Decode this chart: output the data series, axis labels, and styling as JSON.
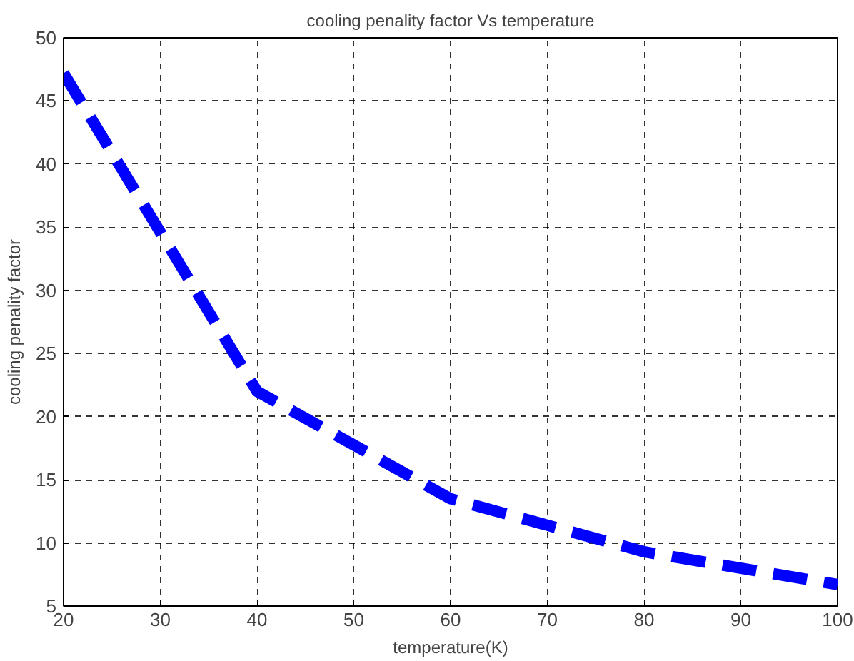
{
  "chart_data": {
    "type": "line",
    "title": "cooling penality factor Vs temperature",
    "xlabel": "temperature(K)",
    "ylabel": "cooling penality factor",
    "x": [
      20,
      40,
      60,
      80,
      100
    ],
    "series": [
      {
        "color": "#0000ff",
        "values": [
          47.2,
          22,
          13.5,
          9.3,
          6.7
        ]
      }
    ],
    "xlim": [
      20,
      100
    ],
    "xticks": [
      20,
      30,
      40,
      50,
      60,
      70,
      80,
      90,
      100
    ],
    "ylim": [
      5,
      50
    ],
    "yticks": [
      5,
      10,
      15,
      20,
      25,
      30,
      35,
      40,
      45,
      50
    ],
    "grid": true,
    "line_style": "dashed",
    "marker": "none"
  }
}
